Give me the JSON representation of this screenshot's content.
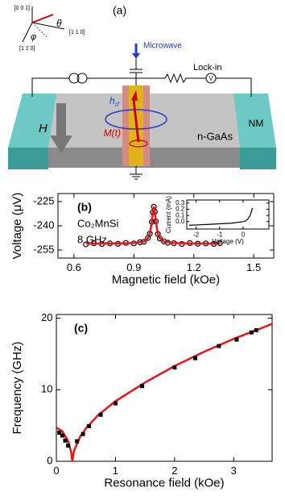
{
  "diagram": {
    "panel_label": "(a)",
    "axis_001": "[0 0 1]",
    "axis_110": "[1 1 0]",
    "axis_1m10": "[1 1̄ 0]",
    "theta": "θ",
    "phi": "φ",
    "microwave": "Microwave",
    "lockin": "Lock-in",
    "voltmeter": "V",
    "hrf_main": "h",
    "hrf_sub": "rf",
    "field": "H",
    "magnetization": "M(t)",
    "substrate": "n-GaAs",
    "contact": "NM"
  },
  "chart_data": [
    {
      "type": "scatter",
      "panel_label": "(b)",
      "annotations": [
        "Co₂MnSi",
        "8 GHz"
      ],
      "xlabel": "Magnetic field (kOe)",
      "ylabel": "Voltage (μV)",
      "xlim": [
        0.52,
        1.6
      ],
      "ylim": [
        -260,
        -220
      ],
      "xticks": [
        0.6,
        0.9,
        1.2,
        1.5
      ],
      "yticks": [
        -225,
        -240,
        -255
      ],
      "series": [
        {
          "mode": "markers",
          "marker": "circle",
          "color": "#000000",
          "x": [
            0.66,
            0.7,
            0.74,
            0.78,
            0.82,
            0.86,
            0.9,
            0.93,
            0.95,
            0.97,
            0.98,
            0.99,
            0.995,
            1.0,
            1.005,
            1.01,
            1.02,
            1.03,
            1.05,
            1.07,
            1.1,
            1.14,
            1.18,
            1.22,
            1.26,
            1.3,
            1.33
          ],
          "values": [
            -251.5,
            -250.8,
            -251.3,
            -250.9,
            -251.2,
            -250.6,
            -250.9,
            -250.2,
            -249.9,
            -247.6,
            -244.9,
            -237.6,
            -231.6,
            -228.2,
            -231.2,
            -237.3,
            -245.1,
            -247.9,
            -249.6,
            -250.5,
            -250.8,
            -251.3,
            -250.7,
            -251.1,
            -250.9,
            -251.2,
            -250.8
          ]
        },
        {
          "mode": "lines",
          "color": "#e8141b",
          "x": [
            0.66,
            0.8,
            0.9,
            0.95,
            0.97,
            0.98,
            0.99,
            0.995,
            1.0,
            1.005,
            1.01,
            1.02,
            1.03,
            1.05,
            1.1,
            1.2,
            1.33
          ],
          "values": [
            -251,
            -250.93,
            -250.67,
            -249.75,
            -247.8,
            -244.9,
            -237.4,
            -231.4,
            -228,
            -231.4,
            -237.4,
            -244.9,
            -247.8,
            -249.75,
            -250.67,
            -250.92,
            -250.97
          ]
        }
      ]
    },
    {
      "type": "line",
      "xlabel": "Voltage (V)",
      "ylabel": "Current (mA)",
      "xlim": [
        -2.4,
        1.1
      ],
      "ylim": [
        -0.12,
        0.35
      ],
      "xticks": [
        -2,
        -1,
        0
      ],
      "yticks": [
        {
          "value": 0,
          "label": "0.0"
        },
        0.1,
        0.2,
        0.3
      ],
      "series": [
        {
          "mode": "lines",
          "color": "#000000",
          "x": [
            -2.3,
            -1.5,
            -1,
            -0.5,
            0,
            0.1,
            0.2,
            0.3,
            0.35,
            0.4
          ],
          "values": [
            -0.06,
            -0.045,
            -0.035,
            -0.025,
            0,
            0.01,
            0.04,
            0.1,
            0.16,
            0.22
          ]
        }
      ]
    },
    {
      "type": "scatter",
      "panel_label": "(c)",
      "xlabel": "Resonance field (kOe)",
      "ylabel": "Frequency (GHz)",
      "xlim": [
        0,
        3.65
      ],
      "ylim": [
        0,
        20.5
      ],
      "xticks": [
        0,
        1,
        2,
        3
      ],
      "yticks": [
        0,
        10,
        20
      ],
      "series": [
        {
          "mode": "lines",
          "color": "#e8141b",
          "x": [
            0,
            0.1,
            0.2,
            0.25,
            0.27,
            0.3,
            0.4,
            0.5,
            0.7,
            1.0,
            1.5,
            2.0,
            2.5,
            3.0,
            3.5,
            3.65
          ],
          "values": [
            4.7,
            4.2,
            2.8,
            1.3,
            0,
            1.5,
            3.4,
            4.6,
            6.4,
            8.4,
            11.0,
            13.3,
            15.3,
            17.1,
            18.7,
            19.2
          ]
        },
        {
          "mode": "markers",
          "marker": "square",
          "color": "#000000",
          "x": [
            0.05,
            0.1,
            0.15,
            0.2,
            0.35,
            0.45,
            0.55,
            0.75,
            1.0,
            1.45,
            2.0,
            2.35,
            2.75,
            3.05,
            3.3,
            3.38
          ],
          "values": [
            4.0,
            3.6,
            2.9,
            2.2,
            2.8,
            3.8,
            4.9,
            6.5,
            8.1,
            10.5,
            13.1,
            14.4,
            16.1,
            17.0,
            18.0,
            18.3
          ]
        }
      ]
    }
  ]
}
